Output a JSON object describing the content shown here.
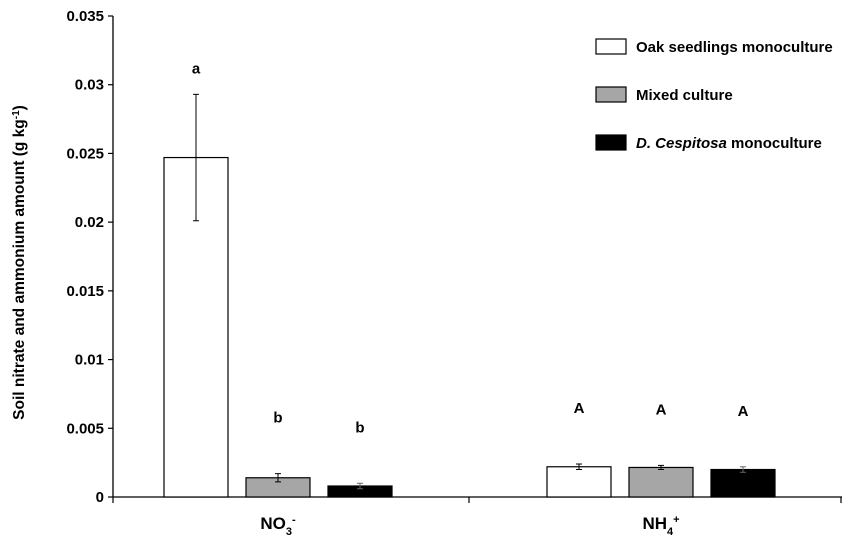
{
  "chart_data": {
    "type": "bar",
    "title": "",
    "xlabel": "",
    "ylabel": "Soil nitrate and ammonium amount (g kg",
    "ylabel_sup": "-1",
    "ylabel_close": ")",
    "ylim": [
      0,
      0.035
    ],
    "yticks": [
      0,
      0.005,
      0.01,
      0.015,
      0.02,
      0.025,
      0.03,
      0.035
    ],
    "ytick_labels": [
      "0",
      "0.005",
      "0.01",
      "0.015",
      "0.02",
      "0.025",
      "0.03",
      "0.035"
    ],
    "grid": false,
    "legend_position": "top-right",
    "categories": [
      {
        "base": "NO",
        "sub": "3",
        "sup": "-"
      },
      {
        "base": "NH",
        "sub": "4",
        "sup": "+"
      }
    ],
    "series": [
      {
        "name_parts": [
          {
            "text": "Oak seedlings monoculture",
            "italic": false
          }
        ],
        "color": "#ffffff",
        "values": [
          0.0247,
          0.0022
        ],
        "errors": [
          0.0046,
          0.0002
        ],
        "letters": [
          "a",
          "A"
        ]
      },
      {
        "name_parts": [
          {
            "text": "Mixed culture",
            "italic": false
          }
        ],
        "color": "#a6a6a6",
        "values": [
          0.0014,
          0.00215
        ],
        "errors": [
          0.0003,
          0.00015
        ],
        "letters": [
          "b",
          "A"
        ]
      },
      {
        "name_parts": [
          {
            "text": "D. Cespitosa",
            "italic": true
          },
          {
            "text": " monoculture",
            "italic": false
          }
        ],
        "color": "#000000",
        "values": [
          0.0008,
          0.002
        ],
        "errors": [
          0.0002,
          0.0002
        ],
        "letters": [
          "b",
          "A"
        ]
      }
    ]
  }
}
